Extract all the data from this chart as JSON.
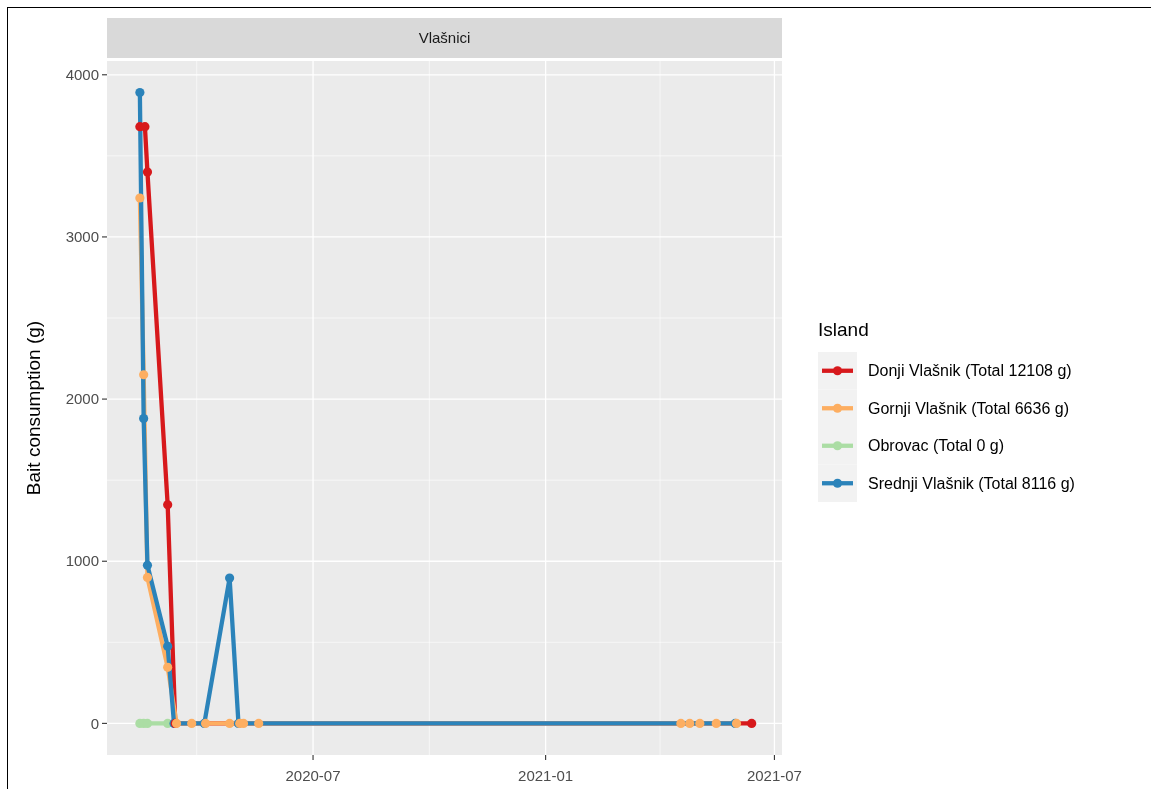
{
  "chart_data": {
    "type": "line",
    "title": "Vlašnici",
    "ylabel": "Bait consumption (g)",
    "legend_title": "Island",
    "xlim": [
      "2020-01-20",
      "2021-07-07"
    ],
    "xticks": [
      "2020-07",
      "2021-01",
      "2021-07"
    ],
    "ylim": [
      -195,
      4085
    ],
    "yticks": [
      0,
      1000,
      2000,
      3000,
      4000
    ],
    "grid": true,
    "legend": "right",
    "marker": "circle",
    "line_style": "solid",
    "series": [
      {
        "name": "Donji Vlašnik (Total 12108 g)",
        "color": "#d7191c",
        "x": [
          "2020-02-15",
          "2020-02-19",
          "2020-02-21",
          "2020-03-08",
          "2020-03-14",
          "2021-06-13"
        ],
        "values": [
          3680,
          3680,
          3400,
          1348,
          0,
          0
        ]
      },
      {
        "name": "Gornji Vlašnik (Total 6636 g)",
        "color": "#fdae61",
        "x": [
          "2020-02-15",
          "2020-02-18",
          "2020-02-21",
          "2020-03-08",
          "2020-03-15",
          "2020-03-27",
          "2020-04-07",
          "2020-04-26",
          "2020-05-04",
          "2020-05-07",
          "2020-05-19",
          "2021-04-18",
          "2021-04-25",
          "2021-05-03",
          "2021-05-16",
          "2021-06-01"
        ],
        "values": [
          3240,
          2150,
          900,
          346,
          0,
          0,
          0,
          0,
          0,
          0,
          0,
          0,
          0,
          0,
          0,
          0
        ]
      },
      {
        "name": "Obrovac (Total 0 g)",
        "color": "#abdda4",
        "x": [
          "2020-02-15",
          "2020-02-18",
          "2020-02-21",
          "2020-03-08"
        ],
        "values": [
          0,
          0,
          0,
          0
        ]
      },
      {
        "name": "Srednji Vlašnik (Total 8116 g)",
        "color": "#2b83ba",
        "x": [
          "2020-02-15",
          "2020-02-18",
          "2020-02-21",
          "2020-03-08",
          "2020-03-13",
          "2020-04-06",
          "2020-04-26",
          "2020-05-03",
          "2021-05-31"
        ],
        "values": [
          3890,
          1880,
          975,
          475,
          0,
          0,
          896,
          0,
          0
        ]
      }
    ]
  }
}
